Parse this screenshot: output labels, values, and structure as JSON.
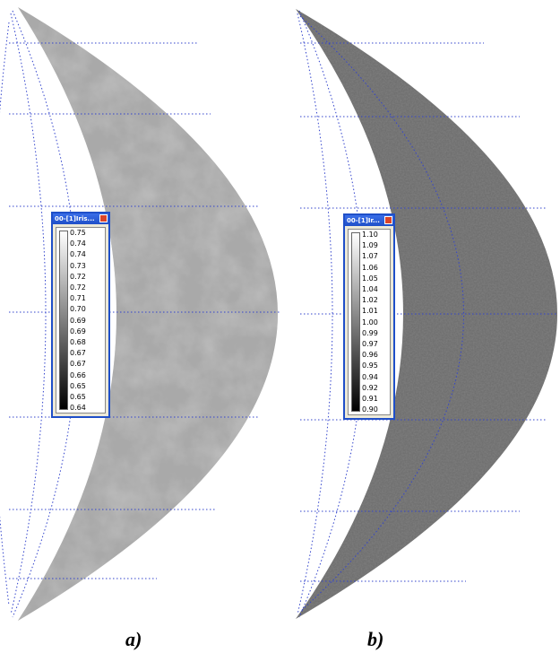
{
  "panels": [
    {
      "window_title": "00-[1]Iris...",
      "colorbar_labels": [
        "0.75",
        "0.74",
        "0.74",
        "0.73",
        "0.72",
        "0.72",
        "0.71",
        "0.70",
        "0.69",
        "0.69",
        "0.68",
        "0.67",
        "0.67",
        "0.66",
        "0.65",
        "0.65",
        "0.64"
      ],
      "caption": "a)"
    },
    {
      "window_title": "00-[1]Ir...",
      "colorbar_labels": [
        "1.10",
        "1.09",
        "1.07",
        "1.06",
        "1.05",
        "1.04",
        "1.02",
        "1.01",
        "1.00",
        "0.99",
        "0.97",
        "0.96",
        "0.95",
        "0.94",
        "0.92",
        "0.91",
        "0.90"
      ],
      "caption": "b)"
    }
  ]
}
